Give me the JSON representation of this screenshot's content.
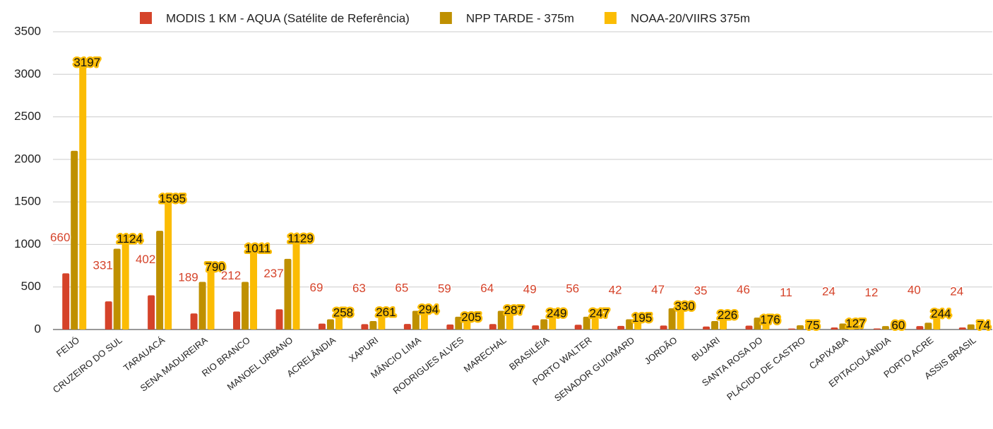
{
  "chart_data": {
    "type": "bar",
    "categories": [
      "FEIJÓ",
      "CRUZEIRO DO SUL",
      "TARAUACÁ",
      "SENA MADUREIRA",
      "RIO BRANCO",
      "MANOEL URBANO",
      "ACRELÂNDIA",
      "XAPURI",
      "MÂNCIO LIMA",
      "RODRIGUES ALVES",
      "MARECHAL",
      "BRASILÉIA",
      "PORTO WALTER",
      "SENADOR GUIOMARD",
      "JORDÃO",
      "BUJARI",
      "SANTA ROSA DO",
      "PLÁCIDO DE CASTRO",
      "CAPIXABA",
      "EPITACIOLÂNDIA",
      "PORTO ACRE",
      "ASSIS BRASIL"
    ],
    "series": [
      {
        "name": "MODIS 1 KM - AQUA (Satélite de Referência)",
        "color": "#d5432a",
        "data_labels": true,
        "values": [
          660,
          331,
          402,
          189,
          212,
          237,
          69,
          63,
          65,
          59,
          64,
          49,
          56,
          42,
          47,
          35,
          46,
          11,
          24,
          12,
          40,
          24
        ]
      },
      {
        "name": "NPP TARDE - 375m",
        "color": "#bf9000",
        "data_labels": false,
        "values": [
          2100,
          950,
          1160,
          560,
          560,
          830,
          120,
          100,
          220,
          150,
          220,
          120,
          150,
          120,
          250,
          100,
          140,
          50,
          70,
          40,
          80,
          60
        ]
      },
      {
        "name": "NOAA-20/VIIRS 375m",
        "color": "#fbbc04",
        "data_labels": true,
        "values": [
          3197,
          1124,
          1595,
          790,
          1011,
          1129,
          258,
          261,
          294,
          205,
          287,
          249,
          247,
          195,
          330,
          226,
          176,
          75,
          127,
          60,
          244,
          74
        ]
      }
    ],
    "ylim": [
      0,
      3500
    ],
    "yticks": [
      0,
      500,
      1000,
      1500,
      2000,
      2500,
      3000,
      3500
    ],
    "grid": true,
    "legend": "top"
  }
}
